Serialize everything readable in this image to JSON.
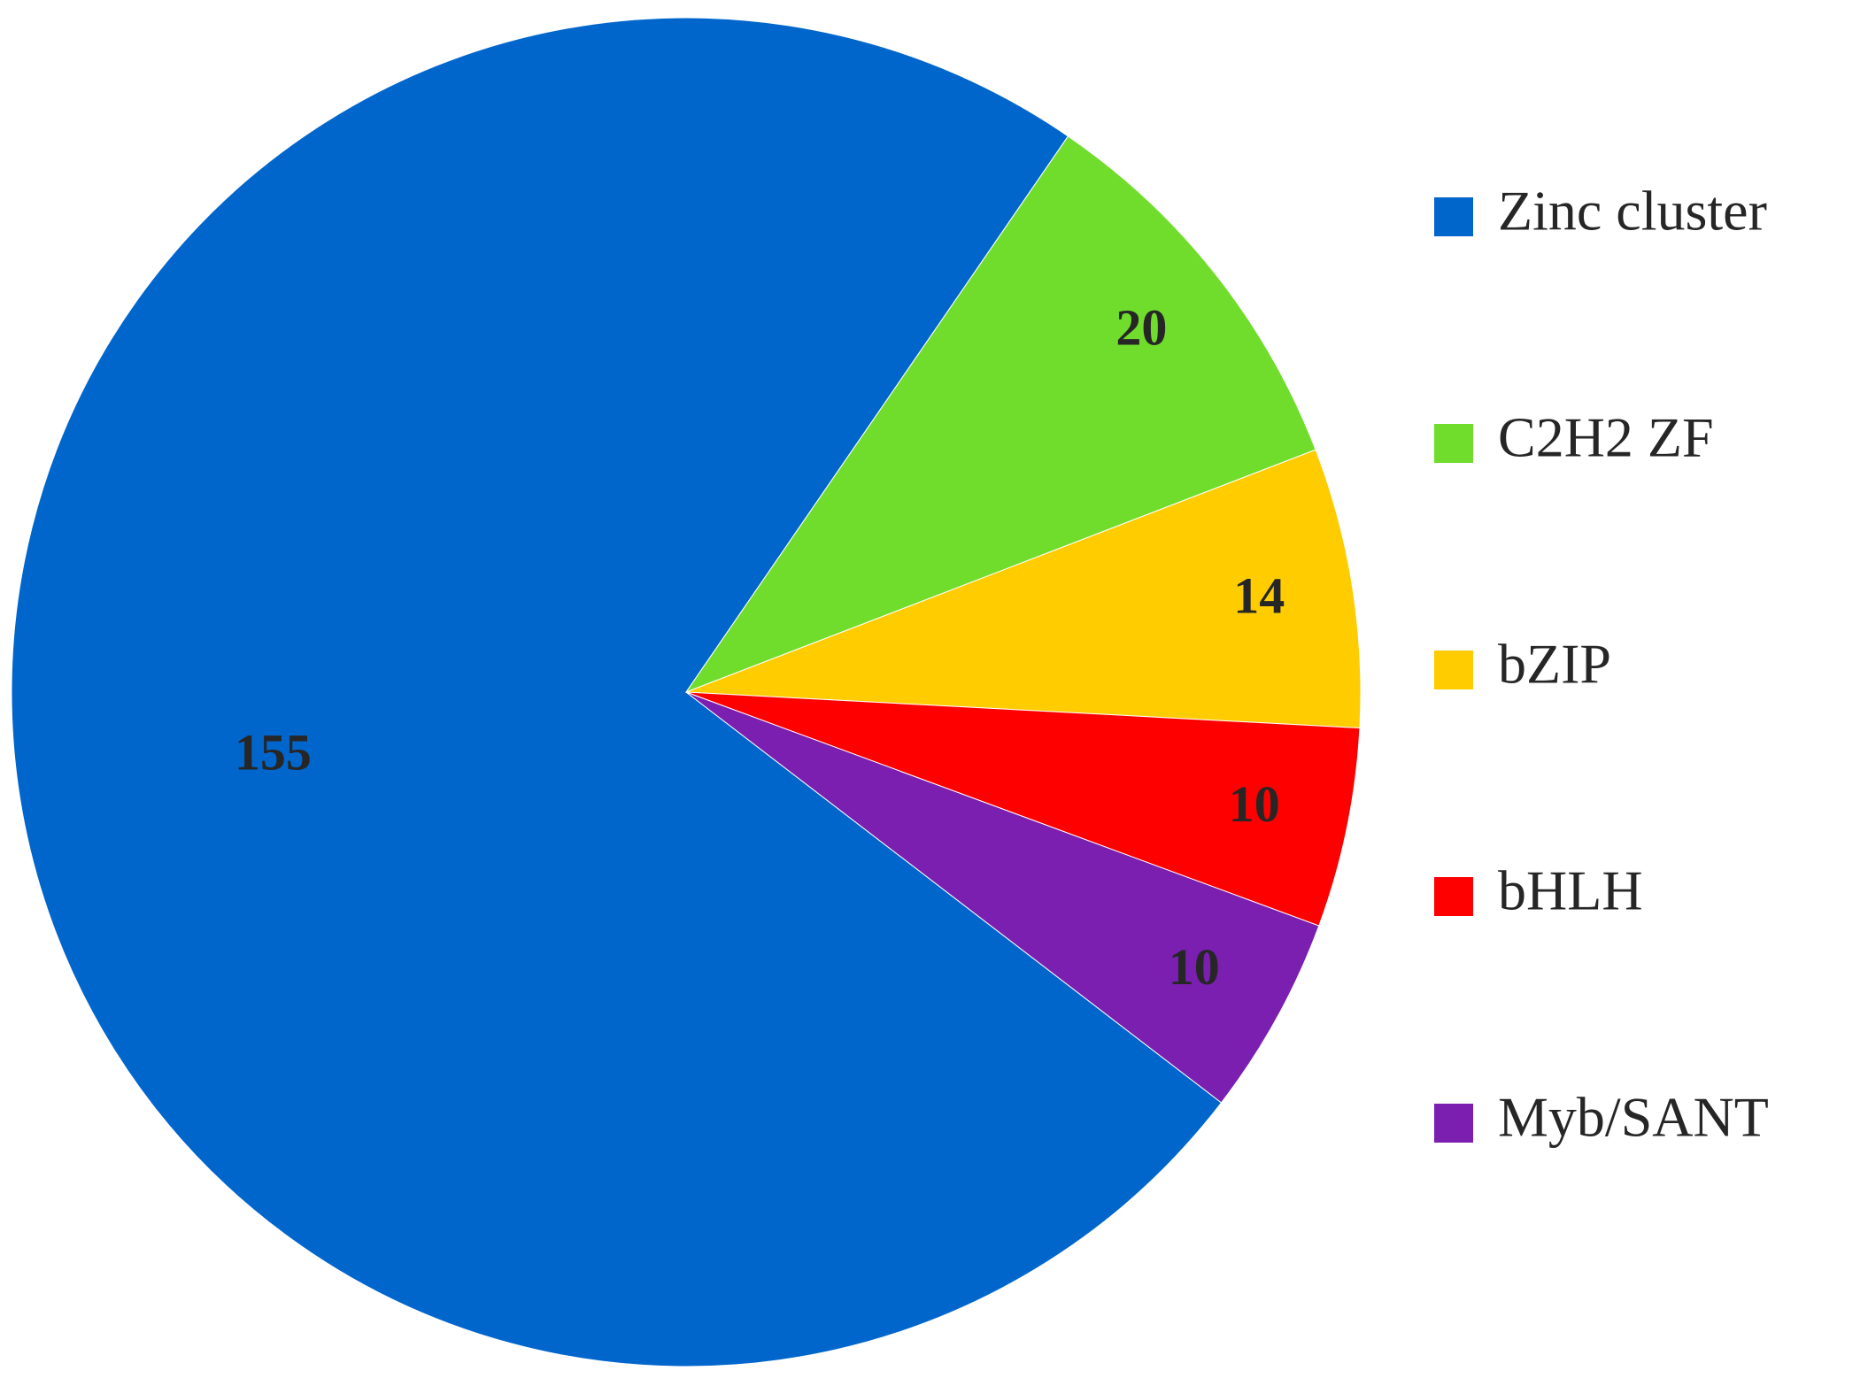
{
  "chart_data": {
    "type": "pie",
    "categories": [
      "Zinc cluster",
      "C2H2 ZF",
      "bZIP",
      "bHLH",
      "Myb/SANT"
    ],
    "values": [
      155,
      20,
      14,
      10,
      10
    ],
    "colors": [
      "#0066cc",
      "#70dd2c",
      "#ffcc00",
      "#ff0000",
      "#7a1fb0"
    ],
    "legend": "right"
  }
}
